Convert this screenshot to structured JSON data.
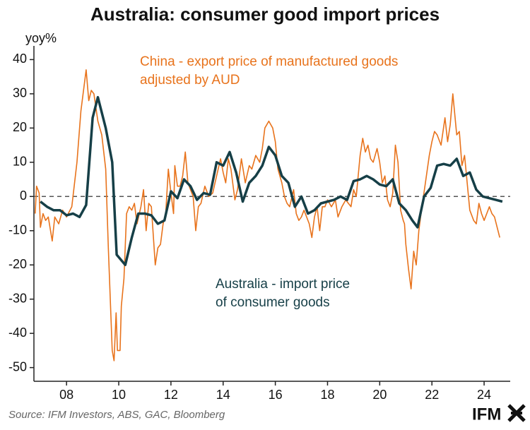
{
  "chart_data": {
    "type": "line",
    "title": "Australia: consumer good import prices",
    "y_label": "yoy%",
    "xlim": [
      2006.75,
      2025
    ],
    "ylim": [
      -54,
      44
    ],
    "xticks": [
      {
        "value": 2008,
        "label": "08"
      },
      {
        "value": 2010,
        "label": "10"
      },
      {
        "value": 2012,
        "label": "12"
      },
      {
        "value": 2014,
        "label": "14"
      },
      {
        "value": 2016,
        "label": "16"
      },
      {
        "value": 2018,
        "label": "18"
      },
      {
        "value": 2020,
        "label": "20"
      },
      {
        "value": 2022,
        "label": "22"
      },
      {
        "value": 2024,
        "label": "24"
      }
    ],
    "yticks": [
      40,
      30,
      20,
      10,
      0,
      -10,
      -20,
      -30,
      -40,
      -50
    ],
    "reference_line": 0,
    "series": [
      {
        "name": "China - export price of manufactured goods adjusted by AUD",
        "label_lines": [
          "China - export price of manufactured goods",
          "adjusted by AUD"
        ],
        "color": "#e8731c",
        "x": [
          2006.8,
          2006.85,
          2006.95,
          2007.0,
          2007.1,
          2007.2,
          2007.3,
          2007.45,
          2007.55,
          2007.7,
          2007.85,
          2008.0,
          2008.2,
          2008.4,
          2008.55,
          2008.75,
          2008.85,
          2008.95,
          2009.05,
          2009.2,
          2009.35,
          2009.5,
          2009.6,
          2009.75,
          2009.82,
          2009.9,
          2009.95,
          2010.05,
          2010.1,
          2010.2,
          2010.3,
          2010.4,
          2010.5,
          2010.6,
          2010.7,
          2010.85,
          2010.95,
          2011.05,
          2011.15,
          2011.25,
          2011.4,
          2011.5,
          2011.6,
          2011.7,
          2011.8,
          2011.9,
          2012.0,
          2012.1,
          2012.15,
          2012.25,
          2012.35,
          2012.45,
          2012.55,
          2012.65,
          2012.75,
          2012.85,
          2012.95,
          2013.05,
          2013.15,
          2013.3,
          2013.45,
          2013.6,
          2013.75,
          2013.9,
          2014.0,
          2014.1,
          2014.2,
          2014.3,
          2014.45,
          2014.55,
          2014.7,
          2014.85,
          2015.0,
          2015.1,
          2015.25,
          2015.4,
          2015.5,
          2015.6,
          2015.75,
          2015.9,
          2016.0,
          2016.1,
          2016.25,
          2016.35,
          2016.45,
          2016.55,
          2016.7,
          2016.8,
          2016.9,
          2017.0,
          2017.1,
          2017.2,
          2017.3,
          2017.4,
          2017.5,
          2017.6,
          2017.7,
          2017.8,
          2017.9,
          2018.0,
          2018.15,
          2018.3,
          2018.4,
          2018.55,
          2018.7,
          2018.8,
          2018.9,
          2019.0,
          2019.1,
          2019.25,
          2019.35,
          2019.45,
          2019.55,
          2019.65,
          2019.75,
          2019.9,
          2020.0,
          2020.1,
          2020.2,
          2020.3,
          2020.4,
          2020.5,
          2020.6,
          2020.7,
          2020.8,
          2020.9,
          2020.95,
          2021.0,
          2021.1,
          2021.2,
          2021.3,
          2021.4,
          2021.5,
          2021.6,
          2021.75,
          2021.9,
          2022.0,
          2022.1,
          2022.2,
          2022.35,
          2022.5,
          2022.6,
          2022.7,
          2022.8,
          2022.95,
          2023.05,
          2023.15,
          2023.25,
          2023.35,
          2023.45,
          2023.6,
          2023.7,
          2023.8,
          2023.9,
          2024.0,
          2024.1,
          2024.2,
          2024.3,
          2024.4,
          2024.5,
          2024.6
        ],
        "values": [
          -5,
          3,
          1,
          -9,
          -5,
          -7,
          -6,
          -13,
          -6,
          -8,
          -4,
          -6,
          -3,
          10,
          25,
          37,
          28,
          31,
          30,
          22,
          18,
          8,
          -15,
          -45,
          -48,
          -34,
          -45,
          -45,
          -32,
          -24,
          -5,
          -3,
          -4,
          -2,
          -8,
          -3,
          2,
          -10,
          -2,
          -3,
          -20,
          -15,
          -14,
          -8,
          -5,
          8,
          1,
          -5,
          9,
          3,
          3,
          6,
          13,
          4,
          2,
          0,
          -10,
          -3,
          -2,
          3,
          0,
          1,
          6,
          11,
          7,
          4,
          11,
          8,
          -1,
          2,
          11,
          4,
          9,
          8,
          12,
          10,
          14,
          20,
          22,
          20,
          16,
          8,
          4,
          0,
          -2,
          -3,
          2,
          -5,
          -7,
          -6,
          -4,
          -6,
          -8,
          -12,
          -6,
          -3,
          -10,
          -3,
          -3,
          -1,
          -3,
          -1,
          -6,
          -3,
          -1,
          -2,
          -3,
          2,
          0,
          12,
          17,
          13,
          15,
          11,
          10,
          14,
          10,
          4,
          6,
          -1,
          -3,
          1,
          15,
          10,
          -4,
          -7,
          -8,
          -14,
          -21,
          -27,
          -16,
          -20,
          -10,
          -4,
          4,
          12,
          16,
          19,
          18,
          15,
          23,
          16,
          21,
          30,
          18,
          19,
          9,
          12,
          4,
          -4,
          -7,
          -8,
          -2,
          -5,
          -7,
          -5,
          -3,
          -5,
          -6,
          -9,
          -12
        ]
      },
      {
        "name": "Australia - import price of consumer goods",
        "label_lines": [
          "Australia - import price",
          "of consumer goods"
        ],
        "color": "#163f47",
        "x": [
          2007.0,
          2007.25,
          2007.5,
          2007.75,
          2008.0,
          2008.25,
          2008.5,
          2008.75,
          2009.0,
          2009.2,
          2009.5,
          2009.75,
          2009.92,
          2010.25,
          2010.5,
          2010.75,
          2011.0,
          2011.25,
          2011.5,
          2011.75,
          2012.0,
          2012.25,
          2012.5,
          2012.75,
          2013.0,
          2013.25,
          2013.5,
          2013.75,
          2014.0,
          2014.25,
          2014.5,
          2014.75,
          2015.0,
          2015.25,
          2015.5,
          2015.75,
          2016.0,
          2016.25,
          2016.5,
          2016.75,
          2017.0,
          2017.25,
          2017.5,
          2017.75,
          2018.0,
          2018.25,
          2018.5,
          2018.75,
          2019.0,
          2019.25,
          2019.5,
          2019.75,
          2020.0,
          2020.25,
          2020.5,
          2020.75,
          2021.0,
          2021.25,
          2021.45,
          2021.7,
          2021.95,
          2022.2,
          2022.45,
          2022.7,
          2022.95,
          2023.2,
          2023.45,
          2023.7,
          2023.95,
          2024.2,
          2024.45,
          2024.7
        ],
        "values": [
          -1.5,
          -3,
          -4,
          -4,
          -5.5,
          -5,
          -6,
          -2.5,
          23,
          29,
          20,
          10,
          -17,
          -20,
          -12,
          -5,
          -5,
          -5.5,
          -8,
          -7,
          1.5,
          -0.5,
          5,
          3,
          -1,
          1,
          0.5,
          10,
          9,
          13,
          7,
          -1.5,
          4,
          6,
          9,
          14.5,
          12,
          6,
          4,
          -3,
          0,
          -5,
          -4,
          -2,
          -1.5,
          -1,
          0,
          -1,
          4.5,
          5,
          6,
          5,
          3.5,
          3,
          5,
          -2,
          -4,
          -7,
          -9,
          0,
          2.5,
          9,
          9.5,
          9,
          11,
          6,
          7,
          2,
          0,
          -0.5,
          -1,
          -1.5
        ]
      }
    ],
    "source": "Source: IFM Investors, ABS, GAC, Bloomberg",
    "logo": "IFM"
  }
}
